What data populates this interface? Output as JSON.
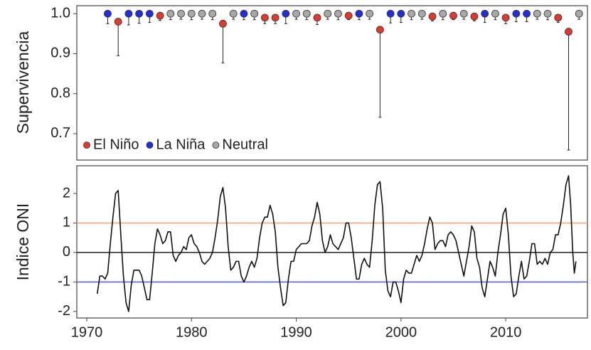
{
  "chart_data": [
    {
      "type": "scatter",
      "y_label": "Supervivencia",
      "xlim": [
        1969.05,
        2017.8
      ],
      "ylim": [
        0.634,
        1.02
      ],
      "yticks": [
        0.7,
        0.8,
        0.9,
        {
          "value": 1,
          "label": "1.0"
        }
      ],
      "legend": "lower left",
      "series": [
        {
          "name": "El Niño",
          "color": "#e0392e",
          "x": [
            1973,
            1977,
            1983,
            1987,
            1988,
            1992,
            1995,
            1998,
            2003,
            2005,
            2007,
            2010,
            2015,
            2016
          ],
          "values": [
            0.98,
            0.995,
            0.975,
            0.99,
            0.99,
            0.99,
            0.995,
            0.96,
            0.993,
            0.995,
            0.993,
            0.99,
            0.99,
            0.955
          ],
          "lower": [
            0.895,
            0.983,
            0.877,
            0.975,
            0.975,
            0.973,
            0.985,
            0.741,
            0.982,
            0.985,
            0.982,
            0.975,
            0.978,
            0.659
          ]
        },
        {
          "name": "La Niña",
          "color": "#1f2fe0",
          "x": [
            1972,
            1974,
            1975,
            1976,
            1985,
            1989,
            1996,
            1999,
            2000,
            2008,
            2011,
            2012
          ],
          "values": [
            1,
            1,
            1,
            1,
            1,
            1,
            1,
            1,
            1,
            1,
            1,
            1
          ],
          "lower": [
            0.975,
            0.972,
            0.976,
            0.978,
            0.985,
            0.975,
            0.985,
            0.977,
            0.978,
            0.978,
            0.98,
            0.98
          ]
        },
        {
          "name": "Neutral",
          "color": "#a8a8a8",
          "x": [
            1978,
            1979,
            1980,
            1981,
            1982,
            1984,
            1986,
            1990,
            1991,
            1993,
            1994,
            1997,
            2001,
            2002,
            2004,
            2006,
            2009,
            2013,
            2014,
            2017
          ],
          "values": [
            1,
            1,
            1,
            1,
            1,
            1,
            1,
            1,
            1,
            1,
            1,
            1,
            1,
            1,
            1,
            1,
            1,
            1,
            1,
            1
          ],
          "lower": [
            0.985,
            0.986,
            0.985,
            0.986,
            0.985,
            0.986,
            0.985,
            0.986,
            0.985,
            0.986,
            0.985,
            0.986,
            0.985,
            0.986,
            0.985,
            0.986,
            0.985,
            0.986,
            0.985,
            0.986
          ]
        }
      ]
    },
    {
      "type": "line",
      "y_label": "Indice ONI",
      "xlim": [
        1969.05,
        2017.8
      ],
      "ylim": [
        -2.22,
        2.94
      ],
      "xticks": [
        1970,
        1980,
        1990,
        2000,
        2010
      ],
      "yticks": [
        -2,
        -1,
        0,
        1,
        2
      ],
      "color": "#111111",
      "reference_lines": [
        {
          "value": 1,
          "color": "#f0a070"
        },
        {
          "value": 0,
          "color": "#222222"
        },
        {
          "value": -1,
          "color": "#4a5cf0"
        }
      ],
      "x": [
        1971,
        1971.25,
        1971.5,
        1971.75,
        1972,
        1972.25,
        1972.5,
        1972.75,
        1973,
        1973.25,
        1973.5,
        1973.75,
        1974,
        1974.25,
        1974.5,
        1974.75,
        1975,
        1975.25,
        1975.5,
        1975.75,
        1976,
        1976.25,
        1976.5,
        1976.75,
        1977,
        1977.25,
        1977.5,
        1977.75,
        1978,
        1978.25,
        1978.5,
        1978.75,
        1979,
        1979.25,
        1979.5,
        1979.75,
        1980,
        1980.25,
        1980.5,
        1980.75,
        1981,
        1981.25,
        1981.5,
        1981.75,
        1982,
        1982.25,
        1982.5,
        1982.75,
        1983,
        1983.25,
        1983.5,
        1983.75,
        1984,
        1984.25,
        1984.5,
        1984.75,
        1985,
        1985.25,
        1985.5,
        1985.75,
        1986,
        1986.25,
        1986.5,
        1986.75,
        1987,
        1987.25,
        1987.5,
        1987.75,
        1988,
        1988.25,
        1988.5,
        1988.75,
        1989,
        1989.25,
        1989.5,
        1989.75,
        1990,
        1990.25,
        1990.5,
        1990.75,
        1991,
        1991.25,
        1991.5,
        1991.75,
        1992,
        1992.25,
        1992.5,
        1992.75,
        1993,
        1993.25,
        1993.5,
        1993.75,
        1994,
        1994.25,
        1994.5,
        1994.75,
        1995,
        1995.25,
        1995.5,
        1995.75,
        1996,
        1996.25,
        1996.5,
        1996.75,
        1997,
        1997.25,
        1997.5,
        1997.75,
        1998,
        1998.25,
        1998.5,
        1998.75,
        1999,
        1999.25,
        1999.5,
        1999.75,
        2000,
        2000.25,
        2000.5,
        2000.75,
        2001,
        2001.25,
        2001.5,
        2001.75,
        2002,
        2002.25,
        2002.5,
        2002.75,
        2003,
        2003.25,
        2003.5,
        2003.75,
        2004,
        2004.25,
        2004.5,
        2004.75,
        2005,
        2005.25,
        2005.5,
        2005.75,
        2006,
        2006.25,
        2006.5,
        2006.75,
        2007,
        2007.25,
        2007.5,
        2007.75,
        2008,
        2008.25,
        2008.5,
        2008.75,
        2009,
        2009.25,
        2009.5,
        2009.75,
        2010,
        2010.25,
        2010.5,
        2010.75,
        2011,
        2011.25,
        2011.5,
        2011.75,
        2012,
        2012.25,
        2012.5,
        2012.75,
        2013,
        2013.25,
        2013.5,
        2013.75,
        2014,
        2014.25,
        2014.5,
        2014.75,
        2015,
        2015.25,
        2015.5,
        2015.75,
        2016,
        2016.2,
        2016.4,
        2016.55,
        2016.7
      ],
      "values": [
        -1.4,
        -0.8,
        -0.8,
        -0.9,
        -0.7,
        0.3,
        1.2,
        2.0,
        2.1,
        0.6,
        -0.8,
        -1.7,
        -2.0,
        -1.1,
        -0.6,
        -0.6,
        -0.6,
        -0.8,
        -1.2,
        -1.6,
        -1.6,
        -0.7,
        0.3,
        0.8,
        0.6,
        0.3,
        0.4,
        0.7,
        0.7,
        -0.1,
        -0.3,
        -0.1,
        0.0,
        0.2,
        0.1,
        0.5,
        0.6,
        0.3,
        0.2,
        0.0,
        -0.3,
        -0.4,
        -0.3,
        -0.2,
        0.0,
        0.5,
        1.1,
        1.9,
        2.2,
        1.5,
        0.2,
        -0.6,
        -0.5,
        -0.3,
        -0.3,
        -0.8,
        -1.0,
        -0.8,
        -0.5,
        -0.3,
        -0.5,
        -0.2,
        0.5,
        1.0,
        1.2,
        1.2,
        1.6,
        1.3,
        0.7,
        -0.5,
        -1.2,
        -1.8,
        -1.7,
        -0.9,
        -0.3,
        -0.3,
        0.1,
        0.2,
        0.3,
        0.3,
        0.3,
        0.4,
        0.9,
        1.2,
        1.7,
        1.3,
        0.4,
        0.0,
        0.2,
        0.6,
        0.3,
        0.2,
        0.1,
        0.3,
        0.5,
        1.0,
        1.0,
        0.5,
        -0.2,
        -0.9,
        -0.9,
        -0.4,
        -0.2,
        -0.4,
        -0.5,
        0.4,
        1.6,
        2.3,
        2.4,
        1.5,
        -0.6,
        -1.3,
        -1.5,
        -1.0,
        -1.0,
        -1.3,
        -1.7,
        -0.9,
        -0.6,
        -0.7,
        -0.7,
        -0.4,
        -0.1,
        -0.3,
        -0.1,
        0.3,
        0.8,
        1.2,
        1.0,
        0.1,
        0.3,
        0.4,
        0.4,
        0.2,
        0.6,
        0.7,
        0.6,
        0.4,
        0.0,
        -0.4,
        -0.8,
        -0.3,
        0.2,
        0.9,
        0.7,
        -0.2,
        -0.5,
        -1.2,
        -1.5,
        -0.9,
        -0.3,
        -0.5,
        -0.8,
        0.0,
        0.6,
        1.3,
        1.5,
        0.6,
        -0.8,
        -1.5,
        -1.4,
        -0.8,
        -0.3,
        -0.9,
        -0.8,
        -0.3,
        0.3,
        0.3,
        -0.4,
        -0.3,
        -0.4,
        -0.2,
        -0.4,
        0.0,
        0.1,
        0.6,
        0.6,
        1.0,
        1.6,
        2.3,
        2.6,
        1.6,
        0.0,
        -0.7,
        -0.3
      ]
    }
  ]
}
